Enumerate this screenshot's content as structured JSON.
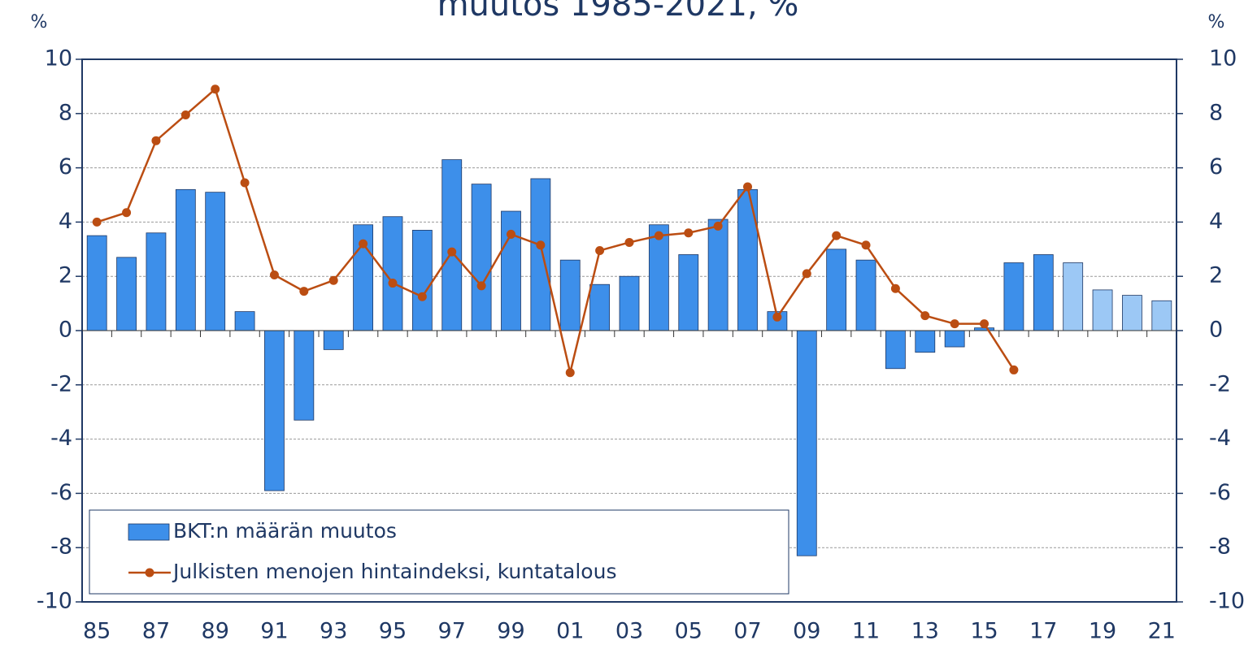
{
  "chart_data": {
    "type": "bar-line",
    "title": "muutos 1985-2021, %",
    "y_label": "%",
    "y2_label": "%",
    "categories": [
      "85",
      null,
      "87",
      null,
      "89",
      null,
      "91",
      null,
      "93",
      null,
      "95",
      null,
      "97",
      null,
      "99",
      null,
      "01",
      null,
      "03",
      null,
      "05",
      null,
      "07",
      null,
      "09",
      null,
      "11",
      null,
      "13",
      null,
      "15",
      null,
      "17",
      null,
      "19",
      null,
      "21"
    ],
    "series": [
      {
        "name": "BKT:n määrän muutos",
        "type": "bar",
        "color": "#3d8fea",
        "colors": [
          "#3d8fea",
          "#3d8fea",
          "#3d8fea",
          "#3d8fea",
          "#3d8fea",
          "#3d8fea",
          "#3d8fea",
          "#3d8fea",
          "#3d8fea",
          "#3d8fea",
          "#3d8fea",
          "#3d8fea",
          "#3d8fea",
          "#3d8fea",
          "#3d8fea",
          "#3d8fea",
          "#3d8fea",
          "#3d8fea",
          "#3d8fea",
          "#3d8fea",
          "#3d8fea",
          "#3d8fea",
          "#3d8fea",
          "#3d8fea",
          "#3d8fea",
          "#3d8fea",
          "#3d8fea",
          "#3d8fea",
          "#3d8fea",
          "#3d8fea",
          "#3d8fea",
          "#3d8fea",
          "#3d8fea",
          "#9cc8f5",
          "#9cc8f5",
          "#9cc8f5",
          "#9cc8f5"
        ],
        "values": [
          3.5,
          2.7,
          3.6,
          5.2,
          5.1,
          0.7,
          -5.9,
          -3.3,
          -0.7,
          3.9,
          4.2,
          3.7,
          6.3,
          5.4,
          4.4,
          5.6,
          2.6,
          1.7,
          2.0,
          3.9,
          2.8,
          4.1,
          5.2,
          0.7,
          -8.3,
          3.0,
          2.6,
          -1.4,
          -0.8,
          -0.6,
          0.1,
          2.5,
          2.8,
          2.5,
          1.5,
          1.3,
          1.1
        ]
      },
      {
        "name": "Julkisten menojen hintaindeksi, kuntatalous",
        "type": "line",
        "axis": "y2",
        "color": "#bb4d12",
        "values": [
          4.0,
          4.35,
          7.0,
          7.95,
          8.9,
          5.45,
          2.05,
          1.45,
          1.85,
          3.2,
          1.75,
          1.25,
          2.9,
          1.65,
          3.55,
          3.15,
          -1.55,
          2.95,
          3.25,
          3.5,
          3.6,
          3.85,
          5.3,
          0.5,
          2.1,
          3.5,
          3.15,
          1.55,
          0.55,
          0.25,
          0.25,
          -1.45,
          null,
          null,
          null,
          null,
          null
        ]
      }
    ],
    "ylim": [
      -10,
      10
    ],
    "yticks": [
      -10,
      -8,
      -6,
      -4,
      -2,
      0,
      2,
      4,
      6,
      8,
      10
    ],
    "y2lim": [
      -10,
      10
    ],
    "y2ticks": [
      -10,
      -8,
      -6,
      -4,
      -2,
      0,
      2,
      4,
      6,
      8,
      10
    ],
    "grid": true,
    "legend": "lower left"
  }
}
